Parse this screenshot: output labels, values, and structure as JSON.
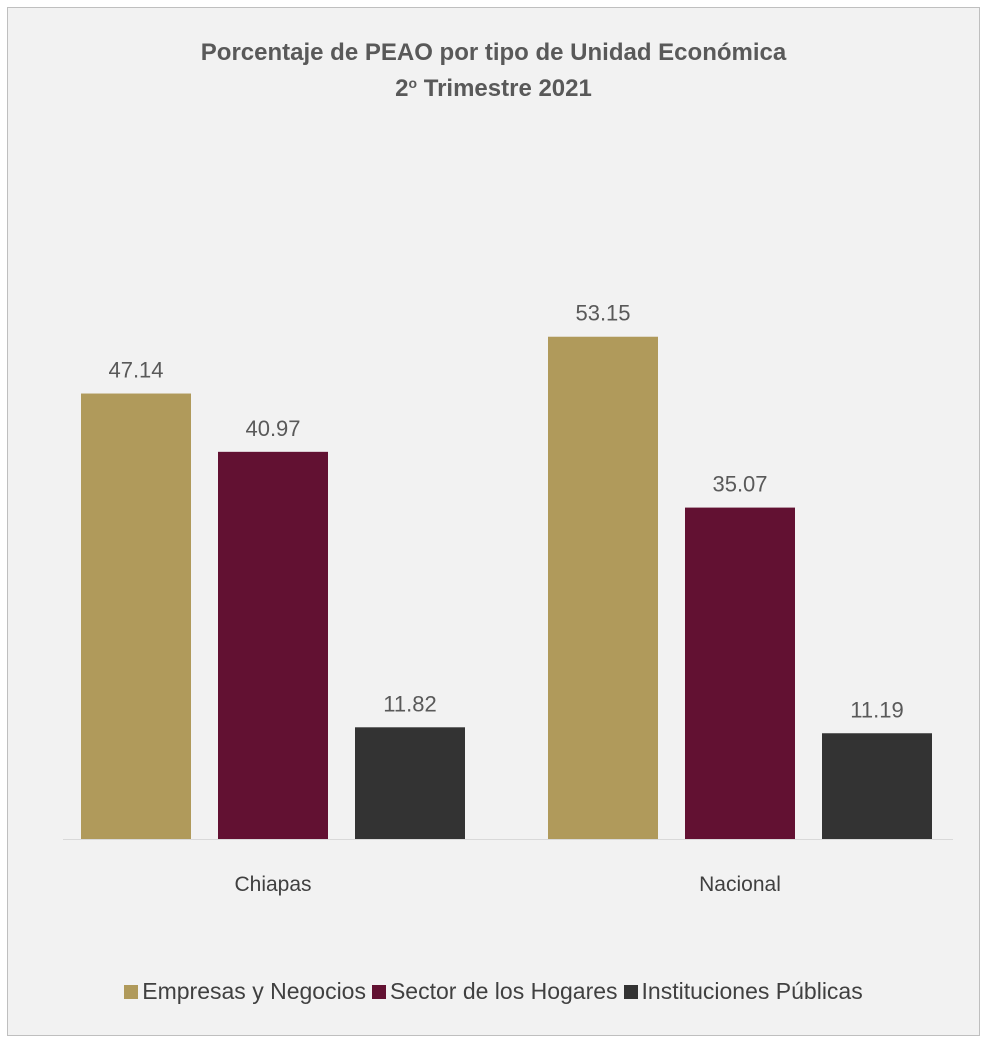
{
  "chart_data": {
    "type": "bar",
    "title_main": "Porcentaje de PEAO por tipo de Unidad Económica",
    "title_num": "2",
    "title_sup": "o",
    "title_rest": " Trimestre 2021",
    "categories": [
      "Chiapas",
      "Nacional"
    ],
    "series": [
      {
        "name": "Empresas y Negocios",
        "values": [
          47.14,
          53.15
        ],
        "color": "#b09a5b"
      },
      {
        "name": "Sector de los Hogares",
        "values": [
          40.97,
          35.07
        ],
        "color": "#621132"
      },
      {
        "name": "Instituciones Públicas",
        "values": [
          11.82,
          11.19
        ],
        "color": "#333333"
      }
    ],
    "ylim": [
      0,
      60
    ],
    "grid": false,
    "legend_position": "bottom"
  }
}
